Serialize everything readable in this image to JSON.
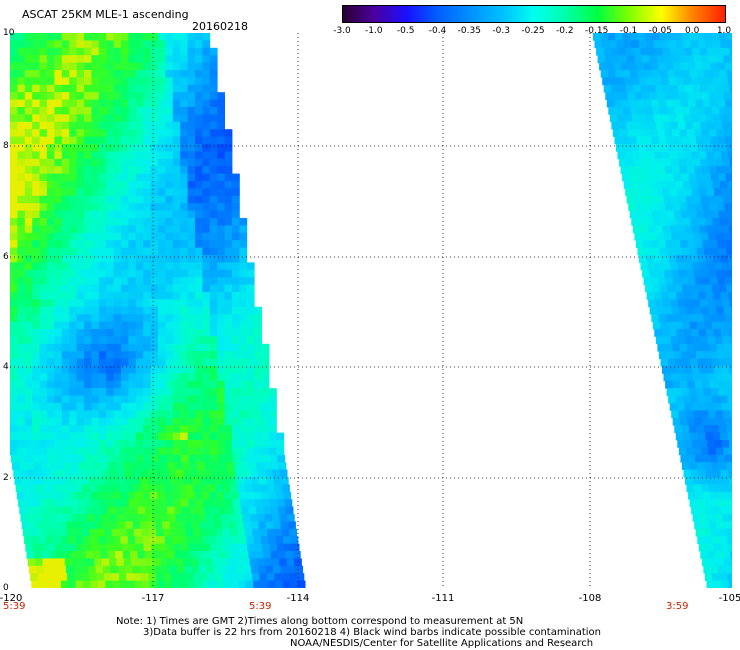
{
  "header": {
    "title": "ASCAT 25KM MLE-1 ascending",
    "date": "20160218"
  },
  "colorbar": {
    "tick_labels": [
      "-3.0",
      "-1.0",
      "-0.5",
      "-0.4",
      "-0.35",
      "-0.3",
      "-0.25",
      "-0.2",
      "-0.15",
      "-0.1",
      "-0.05",
      "0.0",
      "1.0"
    ],
    "colors": [
      "#2a0030",
      "#4a00a0",
      "#1a10ff",
      "#0060ff",
      "#0090ff",
      "#00c0ff",
      "#00ffee",
      "#00ffaa",
      "#00ff40",
      "#80ff00",
      "#ffff00",
      "#ff8000",
      "#ff2000"
    ]
  },
  "map": {
    "y_ticks": [
      "0",
      "2",
      "4",
      "6",
      "8",
      "10"
    ],
    "x_ticks": [
      "-120",
      "-117",
      "-114",
      "-111",
      "-108",
      "-105"
    ],
    "x_range": [
      -120,
      -105
    ],
    "y_range": [
      0,
      10
    ],
    "swath_times": [
      "5:39",
      "5:39",
      "3:59"
    ]
  },
  "notes": {
    "line1": "Note: 1) Times are GMT 2)Times along bottom correspond to measurement at 5N",
    "line2": "3)Data buffer is 22 hrs from 20160218 4) Black wind barbs indicate possible contamination",
    "line3": "NOAA/NESDIS/Center for Satellite Applications and Research"
  }
}
